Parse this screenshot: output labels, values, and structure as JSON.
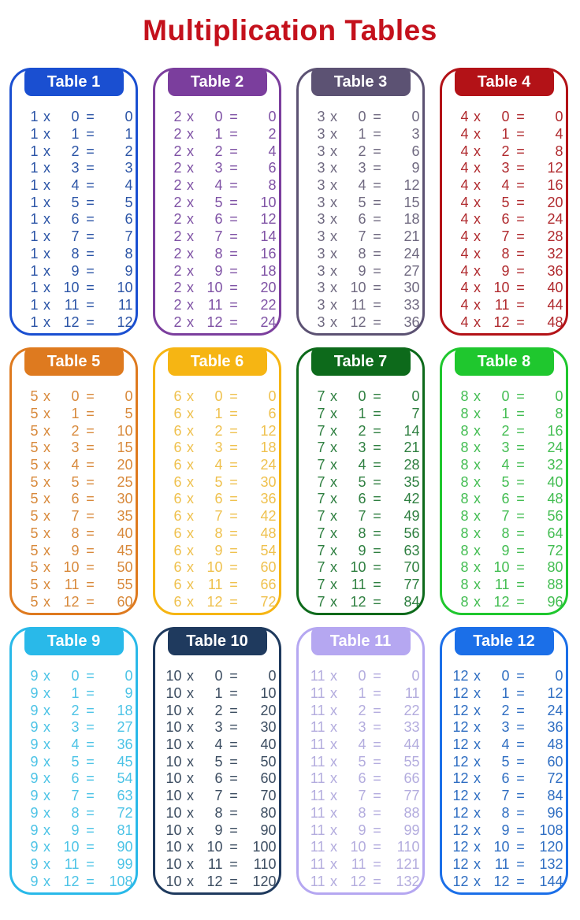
{
  "title": {
    "text": "Multiplication Tables",
    "color": "#C4111C"
  },
  "operators": {
    "times": "x",
    "equals": "="
  },
  "background_color": "#FFFFFF",
  "header_text_color": "#FFFFFF",
  "tables": [
    {
      "label": "Table 1",
      "header_bg": "#1A4FD1",
      "border_color": "#1A4FD1",
      "text_color": "#2B54A6",
      "rows": [
        [
          1,
          0,
          0
        ],
        [
          1,
          1,
          1
        ],
        [
          1,
          2,
          2
        ],
        [
          1,
          3,
          3
        ],
        [
          1,
          4,
          4
        ],
        [
          1,
          5,
          5
        ],
        [
          1,
          6,
          6
        ],
        [
          1,
          7,
          7
        ],
        [
          1,
          8,
          8
        ],
        [
          1,
          9,
          9
        ],
        [
          1,
          10,
          10
        ],
        [
          1,
          11,
          11
        ],
        [
          1,
          12,
          12
        ]
      ]
    },
    {
      "label": "Table 2",
      "header_bg": "#7B3E9D",
      "border_color": "#7B3E9D",
      "text_color": "#7F52A5",
      "rows": [
        [
          2,
          0,
          0
        ],
        [
          2,
          1,
          2
        ],
        [
          2,
          2,
          4
        ],
        [
          2,
          3,
          6
        ],
        [
          2,
          4,
          8
        ],
        [
          2,
          5,
          10
        ],
        [
          2,
          6,
          12
        ],
        [
          2,
          7,
          14
        ],
        [
          2,
          8,
          16
        ],
        [
          2,
          9,
          18
        ],
        [
          2,
          10,
          20
        ],
        [
          2,
          11,
          22
        ],
        [
          2,
          12,
          24
        ]
      ]
    },
    {
      "label": "Table 3",
      "header_bg": "#5C5273",
      "border_color": "#5C5273",
      "text_color": "#6F6980",
      "rows": [
        [
          3,
          0,
          0
        ],
        [
          3,
          1,
          3
        ],
        [
          3,
          2,
          6
        ],
        [
          3,
          3,
          9
        ],
        [
          3,
          4,
          12
        ],
        [
          3,
          5,
          15
        ],
        [
          3,
          6,
          18
        ],
        [
          3,
          7,
          21
        ],
        [
          3,
          8,
          24
        ],
        [
          3,
          9,
          27
        ],
        [
          3,
          10,
          30
        ],
        [
          3,
          11,
          33
        ],
        [
          3,
          12,
          36
        ]
      ]
    },
    {
      "label": "Table 4",
      "header_bg": "#B31217",
      "border_color": "#B31217",
      "text_color": "#B02A2E",
      "rows": [
        [
          4,
          0,
          0
        ],
        [
          4,
          1,
          4
        ],
        [
          4,
          2,
          8
        ],
        [
          4,
          3,
          12
        ],
        [
          4,
          4,
          16
        ],
        [
          4,
          5,
          20
        ],
        [
          4,
          6,
          24
        ],
        [
          4,
          7,
          28
        ],
        [
          4,
          8,
          32
        ],
        [
          4,
          9,
          36
        ],
        [
          4,
          10,
          40
        ],
        [
          4,
          11,
          44
        ],
        [
          4,
          12,
          48
        ]
      ]
    },
    {
      "label": "Table 5",
      "header_bg": "#DE7A1F",
      "border_color": "#DE7A1F",
      "text_color": "#D8893B",
      "rows": [
        [
          5,
          0,
          0
        ],
        [
          5,
          1,
          5
        ],
        [
          5,
          2,
          10
        ],
        [
          5,
          3,
          15
        ],
        [
          5,
          4,
          20
        ],
        [
          5,
          5,
          25
        ],
        [
          5,
          6,
          30
        ],
        [
          5,
          7,
          35
        ],
        [
          5,
          8,
          40
        ],
        [
          5,
          9,
          45
        ],
        [
          5,
          10,
          50
        ],
        [
          5,
          11,
          55
        ],
        [
          5,
          12,
          60
        ]
      ]
    },
    {
      "label": "Table 6",
      "header_bg": "#F6B513",
      "border_color": "#F6B513",
      "text_color": "#EFC14E",
      "rows": [
        [
          6,
          0,
          0
        ],
        [
          6,
          1,
          6
        ],
        [
          6,
          2,
          12
        ],
        [
          6,
          3,
          18
        ],
        [
          6,
          4,
          24
        ],
        [
          6,
          5,
          30
        ],
        [
          6,
          6,
          36
        ],
        [
          6,
          7,
          42
        ],
        [
          6,
          8,
          48
        ],
        [
          6,
          9,
          54
        ],
        [
          6,
          10,
          60
        ],
        [
          6,
          11,
          66
        ],
        [
          6,
          12,
          72
        ]
      ]
    },
    {
      "label": "Table 7",
      "header_bg": "#0D6A1B",
      "border_color": "#0D6A1B",
      "text_color": "#2E7F40",
      "rows": [
        [
          7,
          0,
          0
        ],
        [
          7,
          1,
          7
        ],
        [
          7,
          2,
          14
        ],
        [
          7,
          3,
          21
        ],
        [
          7,
          4,
          28
        ],
        [
          7,
          5,
          35
        ],
        [
          7,
          6,
          42
        ],
        [
          7,
          7,
          49
        ],
        [
          7,
          8,
          56
        ],
        [
          7,
          9,
          63
        ],
        [
          7,
          10,
          70
        ],
        [
          7,
          11,
          77
        ],
        [
          7,
          12,
          84
        ]
      ]
    },
    {
      "label": "Table 8",
      "header_bg": "#1FC72E",
      "border_color": "#1FC72E",
      "text_color": "#43BD52",
      "rows": [
        [
          8,
          0,
          0
        ],
        [
          8,
          1,
          8
        ],
        [
          8,
          2,
          16
        ],
        [
          8,
          3,
          24
        ],
        [
          8,
          4,
          32
        ],
        [
          8,
          5,
          40
        ],
        [
          8,
          6,
          48
        ],
        [
          8,
          7,
          56
        ],
        [
          8,
          8,
          64
        ],
        [
          8,
          9,
          72
        ],
        [
          8,
          10,
          80
        ],
        [
          8,
          11,
          88
        ],
        [
          8,
          12,
          96
        ]
      ]
    },
    {
      "label": "Table 9",
      "header_bg": "#29B9E9",
      "border_color": "#29B9E9",
      "text_color": "#4CC3E6",
      "rows": [
        [
          9,
          0,
          0
        ],
        [
          9,
          1,
          9
        ],
        [
          9,
          2,
          18
        ],
        [
          9,
          3,
          27
        ],
        [
          9,
          4,
          36
        ],
        [
          9,
          5,
          45
        ],
        [
          9,
          6,
          54
        ],
        [
          9,
          7,
          63
        ],
        [
          9,
          8,
          72
        ],
        [
          9,
          9,
          81
        ],
        [
          9,
          10,
          90
        ],
        [
          9,
          11,
          99
        ],
        [
          9,
          12,
          108
        ]
      ]
    },
    {
      "label": "Table 10",
      "header_bg": "#1F3A5E",
      "border_color": "#1F3A5E",
      "text_color": "#3C4D61",
      "rows": [
        [
          10,
          0,
          0
        ],
        [
          10,
          1,
          10
        ],
        [
          10,
          2,
          20
        ],
        [
          10,
          3,
          30
        ],
        [
          10,
          4,
          40
        ],
        [
          10,
          5,
          50
        ],
        [
          10,
          6,
          60
        ],
        [
          10,
          7,
          70
        ],
        [
          10,
          8,
          80
        ],
        [
          10,
          9,
          90
        ],
        [
          10,
          10,
          100
        ],
        [
          10,
          11,
          110
        ],
        [
          10,
          12,
          120
        ]
      ]
    },
    {
      "label": "Table 11",
      "header_bg": "#B5A7F1",
      "border_color": "#B5A7F1",
      "text_color": "#B3ACDE",
      "rows": [
        [
          11,
          0,
          0
        ],
        [
          11,
          1,
          11
        ],
        [
          11,
          2,
          22
        ],
        [
          11,
          3,
          33
        ],
        [
          11,
          4,
          44
        ],
        [
          11,
          5,
          55
        ],
        [
          11,
          6,
          66
        ],
        [
          11,
          7,
          77
        ],
        [
          11,
          8,
          88
        ],
        [
          11,
          9,
          99
        ],
        [
          11,
          10,
          110
        ],
        [
          11,
          11,
          121
        ],
        [
          11,
          12,
          132
        ]
      ]
    },
    {
      "label": "Table 12",
      "header_bg": "#1B6FE8",
      "border_color": "#1B6FE8",
      "text_color": "#2F6EC2",
      "rows": [
        [
          12,
          0,
          0
        ],
        [
          12,
          1,
          12
        ],
        [
          12,
          2,
          24
        ],
        [
          12,
          3,
          36
        ],
        [
          12,
          4,
          48
        ],
        [
          12,
          5,
          60
        ],
        [
          12,
          6,
          72
        ],
        [
          12,
          7,
          84
        ],
        [
          12,
          8,
          96
        ],
        [
          12,
          9,
          108
        ],
        [
          12,
          10,
          120
        ],
        [
          12,
          11,
          132
        ],
        [
          12,
          12,
          144
        ]
      ]
    }
  ]
}
